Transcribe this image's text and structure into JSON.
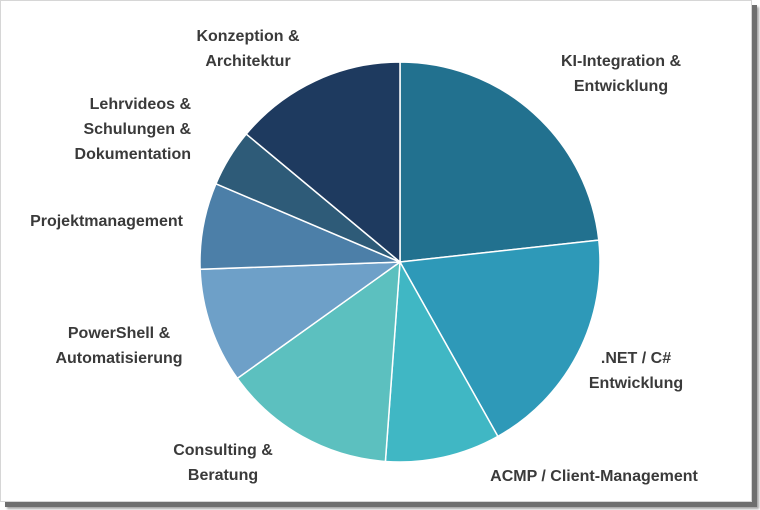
{
  "chart_data": {
    "type": "pie",
    "title": "",
    "slices": [
      {
        "label": [
          "KI-Integration &",
          "Entwicklung"
        ],
        "value": 25.0,
        "color": "#22718f"
      },
      {
        "label": [
          ".NET / C#",
          "Entwicklung"
        ],
        "value": 20.0,
        "color": "#2e99b8"
      },
      {
        "label": [
          "ACMP / Client-Management"
        ],
        "value": 10.0,
        "color": "#40b7c4"
      },
      {
        "label": [
          "Consulting &",
          "Beratung"
        ],
        "value": 15.0,
        "color": "#5cc0bf"
      },
      {
        "label": [
          "PowerShell &",
          "Automatisierung"
        ],
        "value": 10.0,
        "color": "#6ea0c8"
      },
      {
        "label": [
          "Projektmanagement"
        ],
        "value": 7.5,
        "color": "#4c7fa8"
      },
      {
        "label": [
          "Lehrvideos &",
          "Schulungen &",
          "Dokumentation"
        ],
        "value": 5.0,
        "color": "#2e5b78"
      },
      {
        "label": [
          "Konzeption &",
          "Architektur"
        ],
        "value": 15.0,
        "color": "#1e3a5f"
      }
    ]
  }
}
